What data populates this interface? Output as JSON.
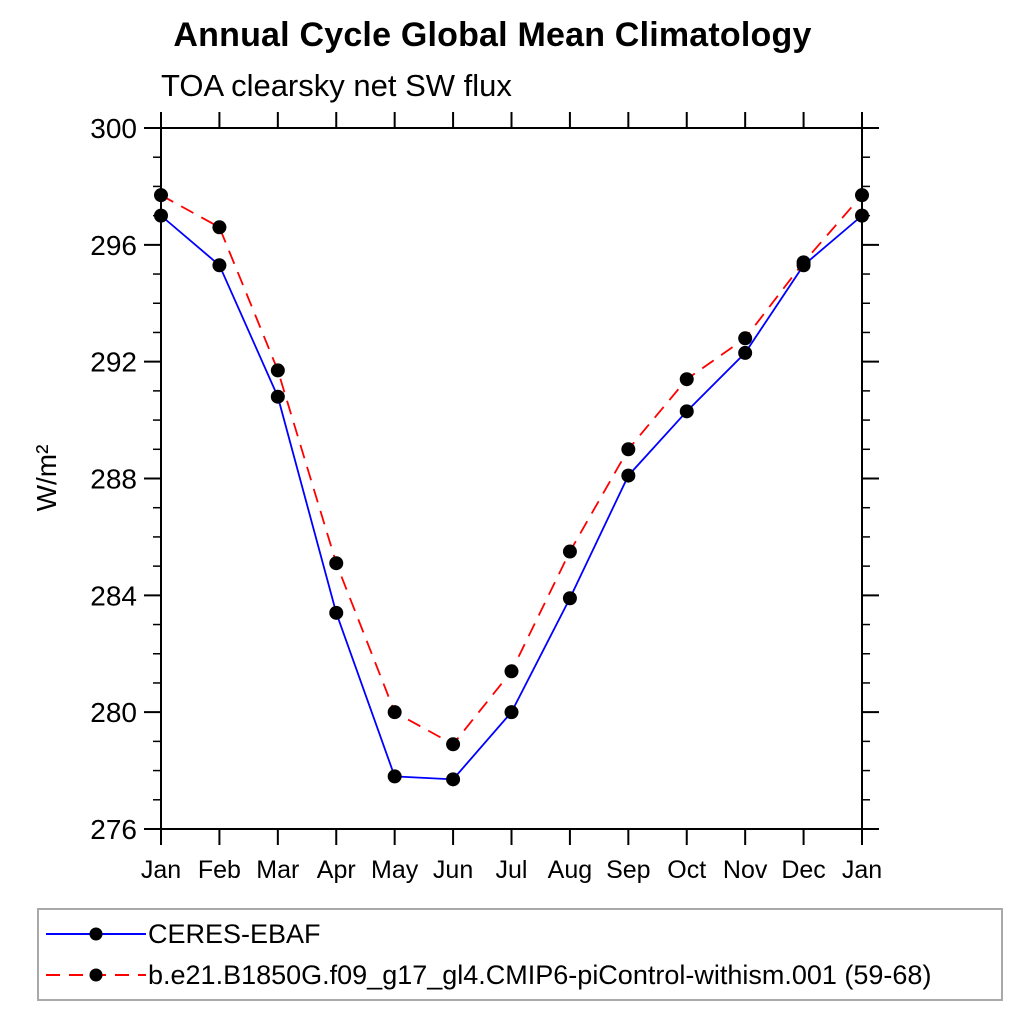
{
  "title": "Annual Cycle Global Mean Climatology",
  "subtitle": "TOA clearsky net SW flux",
  "y_axis_title": "W/m²",
  "chart_data": {
    "type": "line",
    "title": "Annual Cycle Global Mean Climatology",
    "subtitle": "TOA clearsky net SW flux",
    "ylabel": "W/m²",
    "xlabel": "",
    "x_categories": [
      "Jan",
      "Feb",
      "Mar",
      "Apr",
      "May",
      "Jun",
      "Jul",
      "Aug",
      "Sep",
      "Oct",
      "Nov",
      "Dec",
      "Jan"
    ],
    "ylim": [
      276,
      300
    ],
    "y_major_ticks": [
      276,
      280,
      284,
      288,
      292,
      296,
      300
    ],
    "y_minor_step": 1,
    "grid": false,
    "legend_position": "bottom",
    "axis_color": "#000000",
    "marker": {
      "shape": "circle",
      "color": "#000000",
      "radius": 7
    },
    "series": [
      {
        "name": "CERES-EBAF",
        "color": "#0000ff",
        "line_style": "solid",
        "values": [
          297.0,
          295.3,
          290.8,
          283.4,
          277.8,
          277.7,
          280.0,
          283.9,
          288.1,
          290.3,
          292.3,
          295.3,
          297.0
        ]
      },
      {
        "name": "b.e21.B1850G.f09_g17_gl4.CMIP6-piControl-withism.001 (59-68)",
        "color": "#ff0000",
        "line_style": "dashed",
        "values": [
          297.7,
          296.6,
          291.7,
          285.1,
          280.0,
          278.9,
          281.4,
          285.5,
          289.0,
          291.4,
          292.8,
          295.4,
          297.7
        ]
      }
    ]
  }
}
